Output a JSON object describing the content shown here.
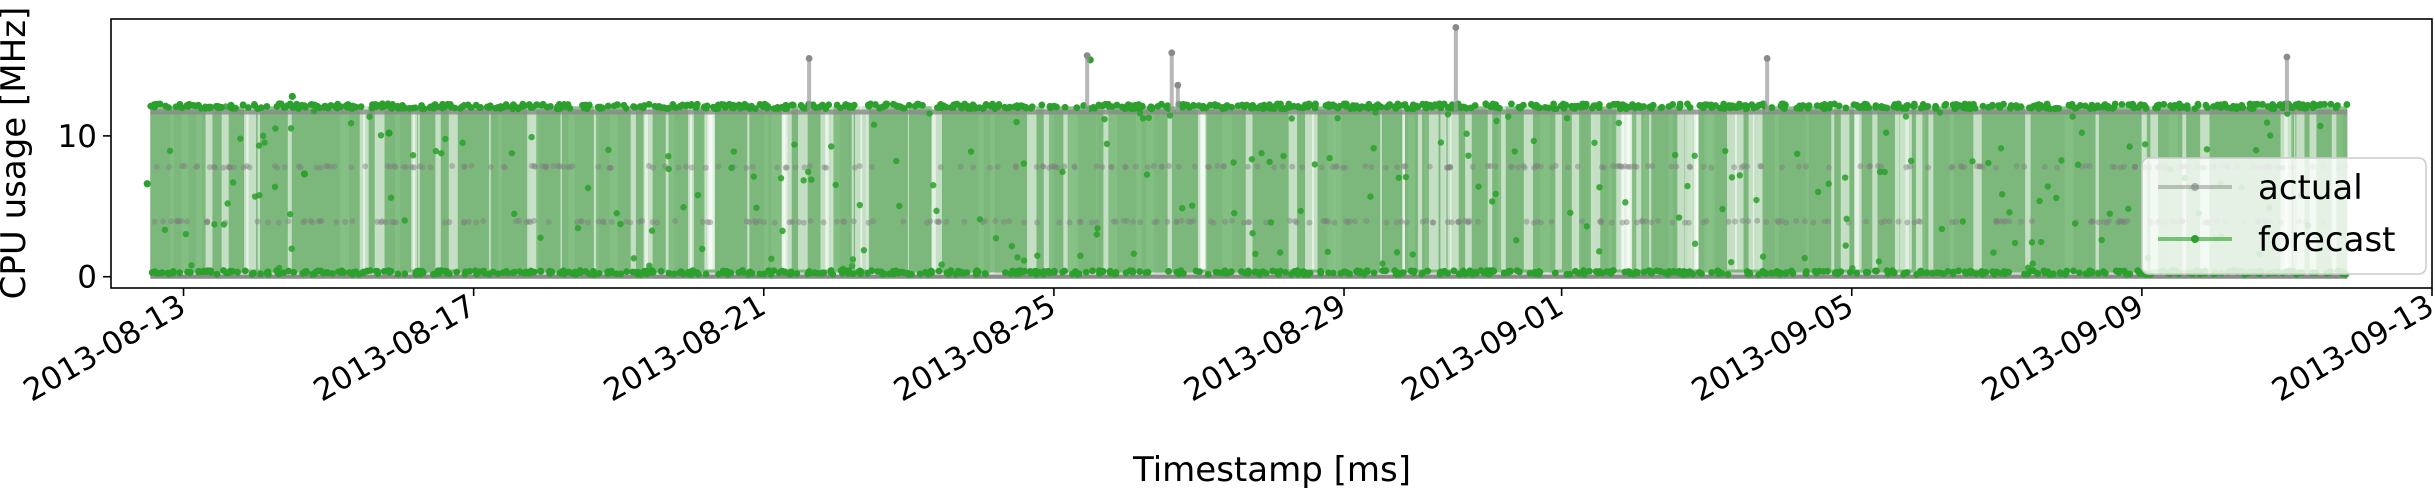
{
  "chart_data": {
    "type": "line",
    "title": "",
    "xlabel": "Timestamp [ms]",
    "ylabel": "CPU usage [MHz]",
    "xlim": [
      "2013-08-12T00:00",
      "2013-09-13T00:00"
    ],
    "ylim": [
      -0.8,
      18.3
    ],
    "x_ticks": [
      "2013-08-13",
      "2013-08-17",
      "2013-08-21",
      "2013-08-25",
      "2013-08-29",
      "2013-09-01",
      "2013-09-05",
      "2013-09-09",
      "2013-09-13"
    ],
    "y_ticks": [
      0,
      10
    ],
    "grid": false,
    "legend_position": "right",
    "data_range": [
      "2013-08-12T13:00",
      "2013-09-11T20:00"
    ],
    "series": [
      {
        "name": "actual",
        "color": "#7f7f7f",
        "baseline": 0,
        "typical_high": 11.7,
        "intermediate_levels": [
          3.9,
          7.8
        ],
        "spikes": [
          {
            "x": "2013-08-21T15:00",
            "y": 15.5
          },
          {
            "x": "2013-08-25T11:00",
            "y": 15.7
          },
          {
            "x": "2013-08-26T15:00",
            "y": 15.9
          },
          {
            "x": "2013-08-26T17:00",
            "y": 13.6
          },
          {
            "x": "2013-08-30T13:00",
            "y": 17.7
          },
          {
            "x": "2013-09-03T20:00",
            "y": 15.5
          },
          {
            "x": "2013-09-11T00:00",
            "y": 15.6
          }
        ]
      },
      {
        "name": "forecast",
        "color": "#2ca02c",
        "baseline": 0.3,
        "typical_high": 12.1,
        "notable_points": [
          {
            "x": "2013-08-12T12:00",
            "y": 6.6
          },
          {
            "x": "2013-08-14T12:00",
            "y": 12.8
          },
          {
            "x": "2013-08-14T16:00",
            "y": 7.3
          },
          {
            "x": "2013-08-15T20:00",
            "y": 10.2
          },
          {
            "x": "2013-08-25T12:00",
            "y": 15.4
          },
          {
            "x": "2013-09-11T03:00",
            "y": 12.2
          }
        ]
      }
    ]
  }
}
